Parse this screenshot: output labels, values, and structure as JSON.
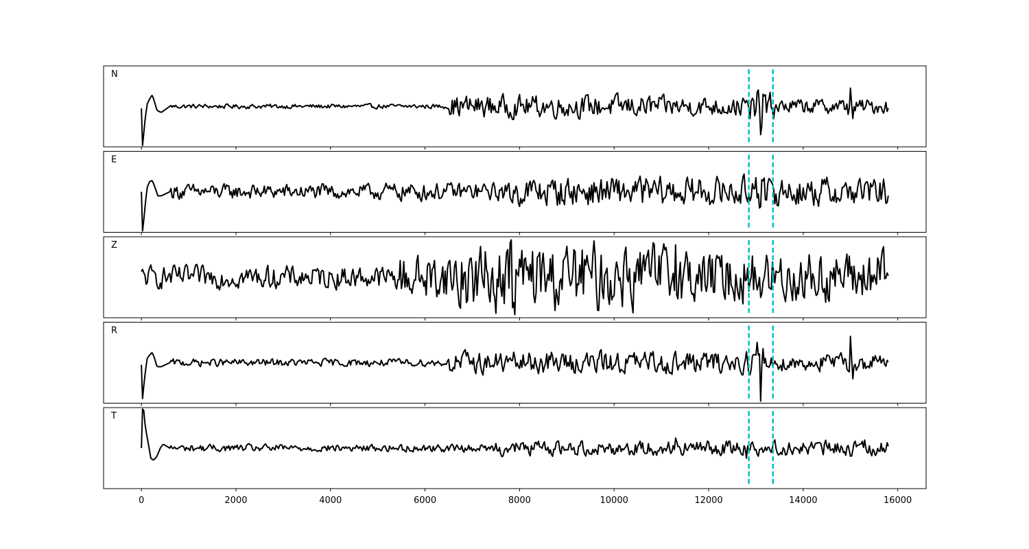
{
  "chart_data": {
    "type": "line",
    "xlim": [
      -800,
      16600
    ],
    "x_ticks": [
      0,
      2000,
      4000,
      6000,
      8000,
      10000,
      12000,
      14000,
      16000
    ],
    "x_tick_labels": [
      "0",
      "2000",
      "4000",
      "6000",
      "8000",
      "10000",
      "12000",
      "14000",
      "16000"
    ],
    "x_range": [
      0,
      15800
    ],
    "sample_step": 25,
    "markers": [
      12850,
      13360
    ],
    "marker_color": "#00bfbf",
    "trace_color": "#000000",
    "grid": false,
    "legend": "none",
    "panels": [
      {
        "label": "N",
        "ylim": [
          -1,
          1
        ],
        "anchors": [
          [
            0,
            -0.05
          ],
          [
            20,
            -1.15
          ],
          [
            60,
            -0.5
          ],
          [
            120,
            0.05
          ],
          [
            180,
            0.2
          ],
          [
            230,
            0.28
          ],
          [
            280,
            0.1
          ],
          [
            330,
            -0.1
          ],
          [
            420,
            -0.15
          ],
          [
            600,
            0
          ]
        ],
        "spikes": [
          [
            12870,
            -0.3
          ],
          [
            12950,
            0.15
          ],
          [
            13030,
            0.35
          ],
          [
            13090,
            -0.7
          ],
          [
            13150,
            0.3
          ],
          [
            13230,
            -0.15
          ],
          [
            14950,
            -0.2
          ],
          [
            15000,
            0.45
          ],
          [
            15060,
            -0.3
          ]
        ],
        "bands": [
          [
            600,
            6500,
            0.03
          ],
          [
            6500,
            11000,
            0.15
          ],
          [
            11000,
            12800,
            0.13
          ],
          [
            12800,
            13400,
            0.18
          ],
          [
            13400,
            15800,
            0.1
          ]
        ]
      },
      {
        "label": "E",
        "ylim": [
          -1,
          1
        ],
        "anchors": [
          [
            0,
            0.0
          ],
          [
            20,
            -1.15
          ],
          [
            60,
            -0.55
          ],
          [
            120,
            0.1
          ],
          [
            170,
            0.25
          ],
          [
            230,
            0.28
          ],
          [
            290,
            0.1
          ],
          [
            350,
            -0.1
          ],
          [
            420,
            -0.1
          ],
          [
            600,
            0
          ]
        ],
        "spikes": [
          [
            12800,
            -0.15
          ],
          [
            12920,
            0.2
          ],
          [
            13000,
            0.35
          ],
          [
            13070,
            -0.4
          ],
          [
            13120,
            0.3
          ],
          [
            13200,
            -0.2
          ]
        ],
        "bands": [
          [
            600,
            5000,
            0.1
          ],
          [
            5000,
            7800,
            0.12
          ],
          [
            7800,
            12800,
            0.2
          ],
          [
            12800,
            13400,
            0.18
          ],
          [
            13400,
            15800,
            0.2
          ]
        ]
      },
      {
        "label": "Z",
        "ylim": [
          -1,
          1
        ],
        "anchors": [],
        "spikes": [
          [
            7800,
            0.85
          ],
          [
            7850,
            -0.75
          ],
          [
            6720,
            -0.7
          ],
          [
            11300,
            0.8
          ],
          [
            10220,
            0.6
          ],
          [
            13100,
            -0.5
          ]
        ],
        "bands": [
          [
            0,
            5400,
            0.15
          ],
          [
            5400,
            6500,
            0.3
          ],
          [
            6500,
            11600,
            0.45
          ],
          [
            11600,
            15800,
            0.35
          ]
        ]
      },
      {
        "label": "R",
        "ylim": [
          -1,
          1
        ],
        "anchors": [
          [
            0,
            -0.05
          ],
          [
            20,
            -0.95
          ],
          [
            60,
            -0.45
          ],
          [
            120,
            0.1
          ],
          [
            180,
            0.2
          ],
          [
            230,
            0.25
          ],
          [
            280,
            0.1
          ],
          [
            330,
            -0.1
          ],
          [
            420,
            -0.1
          ],
          [
            600,
            0
          ]
        ],
        "spikes": [
          [
            12870,
            -0.3
          ],
          [
            12950,
            0.2
          ],
          [
            13030,
            0.5
          ],
          [
            13090,
            -0.95
          ],
          [
            13150,
            0.35
          ],
          [
            14950,
            -0.2
          ],
          [
            15000,
            0.65
          ],
          [
            15060,
            -0.4
          ]
        ],
        "bands": [
          [
            600,
            6500,
            0.05
          ],
          [
            6500,
            12800,
            0.15
          ],
          [
            12800,
            13400,
            0.18
          ],
          [
            13400,
            15800,
            0.12
          ]
        ]
      },
      {
        "label": "T",
        "ylim": [
          -1,
          1
        ],
        "anchors": [
          [
            0,
            0.0
          ],
          [
            20,
            1.3
          ],
          [
            80,
            0.55
          ],
          [
            140,
            0.15
          ],
          [
            200,
            -0.25
          ],
          [
            260,
            -0.3
          ],
          [
            330,
            -0.2
          ],
          [
            400,
            0.0
          ],
          [
            460,
            0.1
          ],
          [
            600,
            0
          ]
        ],
        "spikes": [
          [
            12800,
            -0.25
          ],
          [
            12920,
            0.15
          ],
          [
            11300,
            0.25
          ],
          [
            15300,
            0.2
          ],
          [
            15000,
            -0.2
          ]
        ],
        "bands": [
          [
            600,
            7500,
            0.05
          ],
          [
            7500,
            15800,
            0.1
          ]
        ]
      }
    ]
  }
}
